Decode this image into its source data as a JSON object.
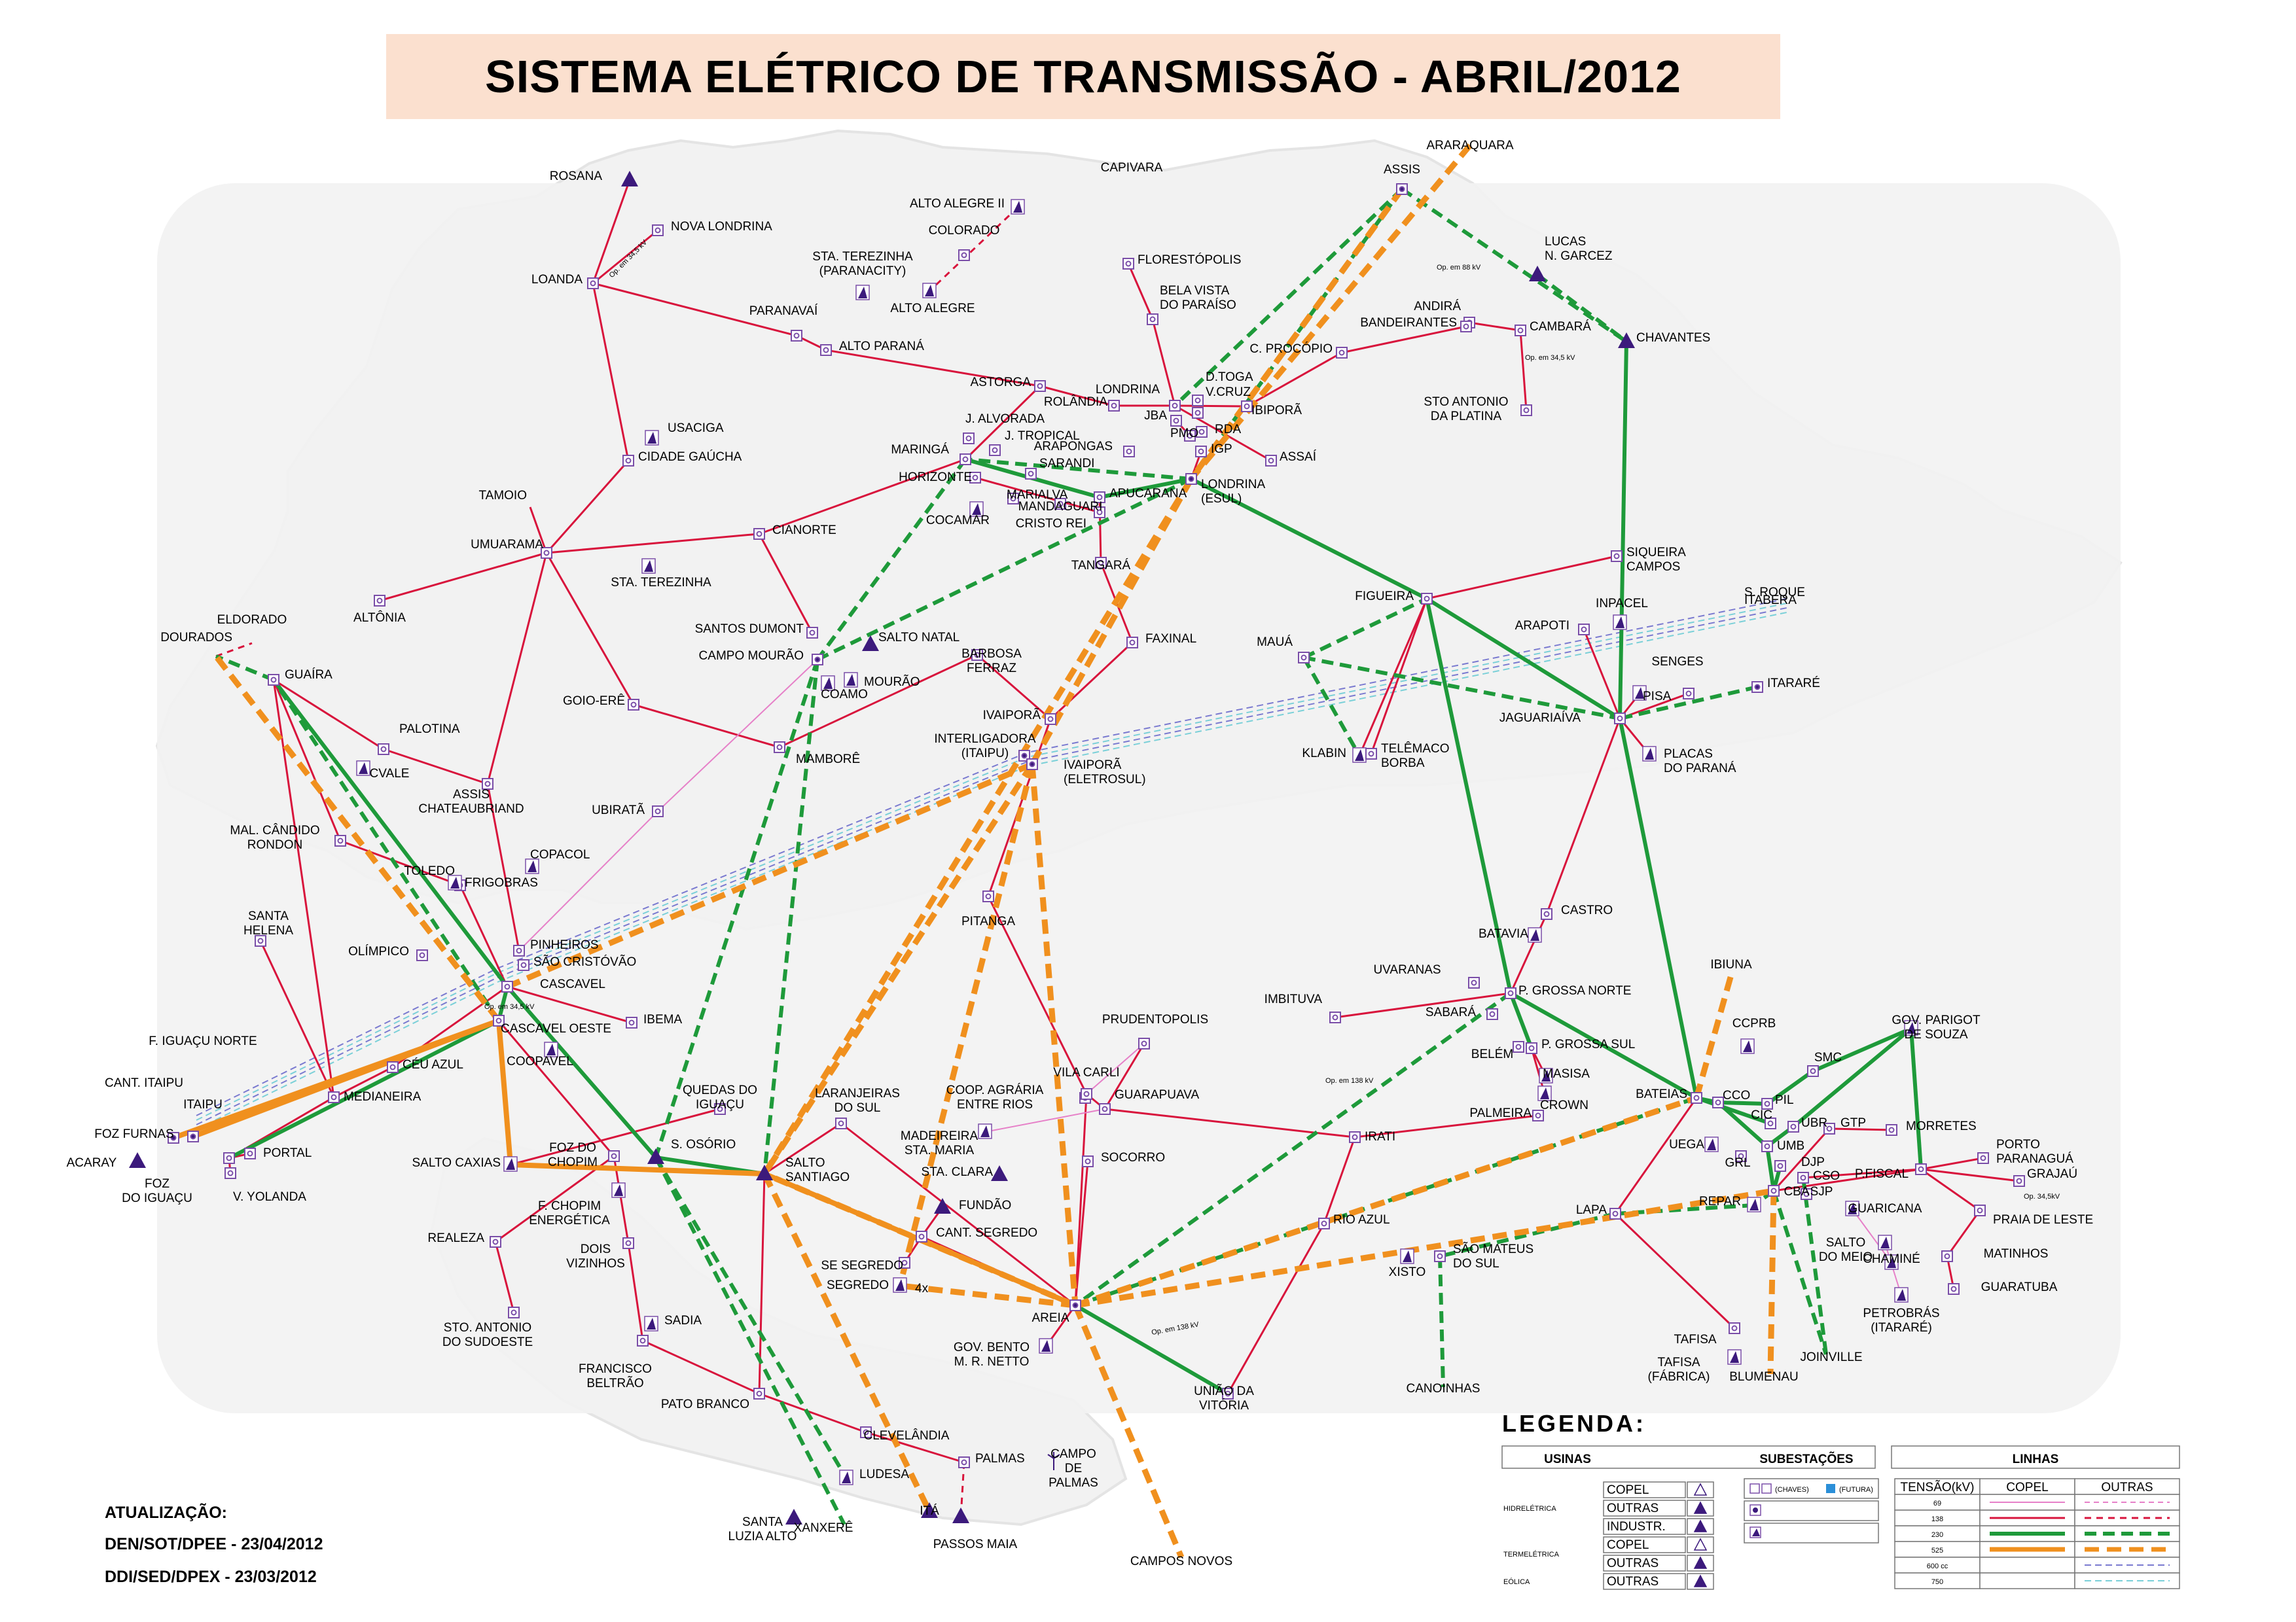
{
  "title": "SISTEMA ELÉTRICO DE TRANSMISSÃO - ABRIL/2012",
  "colors": {
    "line_69": "#e680c8",
    "line_138": "#d8143c",
    "line_230": "#1e9a3a",
    "line_525": "#f0901e",
    "line_600": "#7a7ad0",
    "line_750": "#7ad0d8",
    "plant": "#3c1a7c",
    "substation": "#7a4ea8",
    "title_bg": "#fbe0cf",
    "territory": "#f2f2f2"
  },
  "stations": [
    {
      "name": "ROSANA",
      "sym": "tri"
    },
    {
      "name": "NOVA LONDRINA",
      "sym": "sq"
    },
    {
      "name": "LOANDA",
      "sym": "sq"
    },
    {
      "name": "PARANAVAÍ",
      "sym": "sq"
    },
    {
      "name": "ALTO PARANÁ",
      "sym": "sq"
    },
    {
      "name": "ALTO ALEGRE II",
      "sym": "trio"
    },
    {
      "name": "COLORADO",
      "sym": "sq"
    },
    {
      "name": "STA. TEREZINHA (PARANACITY)",
      "sym": "trio"
    },
    {
      "name": "ALTO ALEGRE",
      "sym": "trio"
    },
    {
      "name": "CAPIVARA",
      "sym": "none"
    },
    {
      "name": "FLORESTÓPOLIS",
      "sym": "sq"
    },
    {
      "name": "BELA VISTA DO PARAÍSO",
      "sym": "sq"
    },
    {
      "name": "ARARAQUARA",
      "sym": "none"
    },
    {
      "name": "ASSIS",
      "sym": "sqb"
    },
    {
      "name": "LUCAS N. GARCEZ",
      "sym": "tri"
    },
    {
      "name": "ANDIRÁ",
      "sym": "sq"
    },
    {
      "name": "CAMBARÁ",
      "sym": "sq"
    },
    {
      "name": "BANDEIRANTES",
      "sym": "sq"
    },
    {
      "name": "C. PROCÓPIO",
      "sym": "sq"
    },
    {
      "name": "STO ANTONIO DA PLATINA",
      "sym": "sq"
    },
    {
      "name": "CHAVANTES",
      "sym": "tri"
    },
    {
      "name": "ASTORGA",
      "sym": "sq"
    },
    {
      "name": "ROLÂNDIA",
      "sym": "sq"
    },
    {
      "name": "LONDRINA",
      "sym": "sq"
    },
    {
      "name": "D.TOGA",
      "sym": "sq"
    },
    {
      "name": "V.CRUZ",
      "sym": "sq"
    },
    {
      "name": "IBIPORÃ",
      "sym": "sq"
    },
    {
      "name": "JBA",
      "sym": "sq"
    },
    {
      "name": "PMO",
      "sym": "sq"
    },
    {
      "name": "RDA",
      "sym": "sq"
    },
    {
      "name": "IGP",
      "sym": "sq"
    },
    {
      "name": "ASSAÍ",
      "sym": "sq"
    },
    {
      "name": "LONDRINA (ESUL)",
      "sym": "sqb"
    },
    {
      "name": "J. ALVORADA",
      "sym": "sq"
    },
    {
      "name": "J. TROPICAL",
      "sym": "sq"
    },
    {
      "name": "ARAPONGAS",
      "sym": "sq"
    },
    {
      "name": "SARANDI",
      "sym": "sq"
    },
    {
      "name": "MARINGÁ",
      "sym": "sq"
    },
    {
      "name": "HORIZONTE",
      "sym": "sq"
    },
    {
      "name": "MARIALVA",
      "sym": "sq"
    },
    {
      "name": "MANDAGUARI",
      "sym": "sq"
    },
    {
      "name": "APUCARANA",
      "sym": "sq"
    },
    {
      "name": "COCAMAR",
      "sym": "trio"
    },
    {
      "name": "CRISTO REI",
      "sym": "sq"
    },
    {
      "name": "TANGARÁ",
      "sym": "sq"
    },
    {
      "name": "USACIGA",
      "sym": "trio"
    },
    {
      "name": "CIDADE GAÚCHA",
      "sym": "sq"
    },
    {
      "name": "TAMOIO",
      "sym": "none"
    },
    {
      "name": "UMUARAMA",
      "sym": "sq"
    },
    {
      "name": "CIANORTE",
      "sym": "sq"
    },
    {
      "name": "STA. TEREZINHA",
      "sym": "trio"
    },
    {
      "name": "ALTÔNIA",
      "sym": "sq"
    },
    {
      "name": "SANTOS DUMONT",
      "sym": "sq"
    },
    {
      "name": "CAMPO MOURÃO",
      "sym": "sqb"
    },
    {
      "name": "SALTO NATAL",
      "sym": "tri"
    },
    {
      "name": "MOURÃO",
      "sym": "trio"
    },
    {
      "name": "COAMO",
      "sym": "trio"
    },
    {
      "name": "BARBOSA FERRAZ",
      "sym": "sq"
    },
    {
      "name": "FAXINAL",
      "sym": "sq"
    },
    {
      "name": "ELDORADO",
      "sym": "none"
    },
    {
      "name": "DOURADOS",
      "sym": "none"
    },
    {
      "name": "GUAÍRA",
      "sym": "sq"
    },
    {
      "name": "PALOTINA",
      "sym": "sq"
    },
    {
      "name": "CVALE",
      "sym": "trio"
    },
    {
      "name": "ASSIS CHATEAUBRIAND",
      "sym": "sq"
    },
    {
      "name": "GOIO-ERÊ",
      "sym": "sq"
    },
    {
      "name": "MAMBORÊ",
      "sym": "sq"
    },
    {
      "name": "IVAIPORÃ",
      "sym": "sq"
    },
    {
      "name": "INTERLIGADORA (ITAIPU)",
      "sym": "sqb"
    },
    {
      "name": "IVAIPORÃ (ELETROSUL)",
      "sym": "sqb"
    },
    {
      "name": "UBIRATÃ",
      "sym": "sq"
    },
    {
      "name": "PITANGA",
      "sym": "sq"
    },
    {
      "name": "MAL. CÂNDIDO RONDON",
      "sym": "sq"
    },
    {
      "name": "COPACOL",
      "sym": "trio"
    },
    {
      "name": "TOLEDO",
      "sym": "sq"
    },
    {
      "name": "FRIGOBRAS",
      "sym": "trio"
    },
    {
      "name": "SANTA HELENA",
      "sym": "sq"
    },
    {
      "name": "OLÍMPICO",
      "sym": "sq"
    },
    {
      "name": "PINHEIROS",
      "sym": "sq"
    },
    {
      "name": "SÃO CRISTÓVÃO",
      "sym": "sq"
    },
    {
      "name": "CASCAVEL",
      "sym": "sq"
    },
    {
      "name": "CASCAVEL OESTE",
      "sym": "sq"
    },
    {
      "name": "IBEMA",
      "sym": "sq"
    },
    {
      "name": "COOPAVEL",
      "sym": "trio"
    },
    {
      "name": "CÉU AZUL",
      "sym": "sq"
    },
    {
      "name": "F. IGUAÇU NORTE",
      "sym": "none"
    },
    {
      "name": "CANT. ITAIPU",
      "sym": "none"
    },
    {
      "name": "ITAIPU",
      "sym": "sqb"
    },
    {
      "name": "MEDIANEIRA",
      "sym": "sq"
    },
    {
      "name": "FOZ FURNAS",
      "sym": "sqb"
    },
    {
      "name": "ACARAY",
      "sym": "tri"
    },
    {
      "name": "FOZ DO IGUAÇU",
      "sym": "sq"
    },
    {
      "name": "V. YOLANDA",
      "sym": "sq"
    },
    {
      "name": "PORTAL",
      "sym": "sq"
    },
    {
      "name": "SALTO CAXIAS",
      "sym": "trio"
    },
    {
      "name": "FOZ DO CHOPIM",
      "sym": "sq"
    },
    {
      "name": "S. OSÓRIO",
      "sym": "tri"
    },
    {
      "name": "QUEDAS DO IGUAÇU",
      "sym": "sq"
    },
    {
      "name": "SALTO SANTIAGO",
      "sym": "tri"
    },
    {
      "name": "F. CHOPIM ENERGÉTICA",
      "sym": "trio"
    },
    {
      "name": "LARANJEIRAS DO SUL",
      "sym": "sq"
    },
    {
      "name": "REALEZA",
      "sym": "sq"
    },
    {
      "name": "DOIS VIZINHOS",
      "sym": "sq"
    },
    {
      "name": "SADIA",
      "sym": "trio"
    },
    {
      "name": "STO. ANTONIO DO SUDOESTE",
      "sym": "sq"
    },
    {
      "name": "FRANCISCO BELTRÃO",
      "sym": "sq"
    },
    {
      "name": "PATO BRANCO",
      "sym": "sq"
    },
    {
      "name": "CLEVELÂNDIA",
      "sym": "sq"
    },
    {
      "name": "LUDESA",
      "sym": "trio"
    },
    {
      "name": "PALMAS",
      "sym": "sq"
    },
    {
      "name": "CAMPO DE PALMAS",
      "sym": "wind"
    },
    {
      "name": "SANTA LUZIA ALTO",
      "sym": "tri"
    },
    {
      "name": "XANXERÊ",
      "sym": "none"
    },
    {
      "name": "ITÁ",
      "sym": "tri"
    },
    {
      "name": "PASSOS MAIA",
      "sym": "tri"
    },
    {
      "name": "CAMPOS NOVOS",
      "sym": "none"
    },
    {
      "name": "CANT. SEGREDO",
      "sym": "sq"
    },
    {
      "name": "SE SEGREDO",
      "sym": "sq"
    },
    {
      "name": "SEGREDO",
      "sym": "trio"
    },
    {
      "name": "GOV. BENTO M. R. NETTO",
      "sym": "trio"
    },
    {
      "name": "AREIA",
      "sym": "sqb"
    },
    {
      "name": "FUNDÃO",
      "sym": "tri"
    },
    {
      "name": "STA. CLARA",
      "sym": "tri"
    },
    {
      "name": "COOP. AGRÁRIA ENTRE RIOS",
      "sym": "sq"
    },
    {
      "name": "MADEIREIRA STA. MARIA",
      "sym": "trio"
    },
    {
      "name": "VILA CARLI",
      "sym": "sq"
    },
    {
      "name": "GUARAPUAVA",
      "sym": "sq"
    },
    {
      "name": "PRUDENTOPOLIS",
      "sym": "sq"
    },
    {
      "name": "SOCORRO",
      "sym": "sq"
    },
    {
      "name": "IRATI",
      "sym": "sq"
    },
    {
      "name": "RIO AZUL",
      "sym": "sq"
    },
    {
      "name": "UNIÃO DA VITÓRIA",
      "sym": "sq"
    },
    {
      "name": "XISTO",
      "sym": "trio"
    },
    {
      "name": "SÃO MATEUS DO SUL",
      "sym": "sq"
    },
    {
      "name": "CANOINHAS",
      "sym": "none"
    },
    {
      "name": "FIGUEIRA",
      "sym": "sq"
    },
    {
      "name": "MAUÁ",
      "sym": "sq"
    },
    {
      "name": "KLABIN",
      "sym": "trio"
    },
    {
      "name": "TELÊMACO BORBA",
      "sym": "sq"
    },
    {
      "name": "SIQUEIRA CAMPOS",
      "sym": "sq"
    },
    {
      "name": "INPACEL",
      "sym": "trio"
    },
    {
      "name": "ARAPOTI",
      "sym": "sq"
    },
    {
      "name": "SENGES",
      "sym": "sq"
    },
    {
      "name": "PISA",
      "sym": "trio"
    },
    {
      "name": "JAGUARIAÍVA",
      "sym": "sq"
    },
    {
      "name": "PLACAS DO PARANÁ",
      "sym": "trio"
    },
    {
      "name": "ITARARÉ",
      "sym": "sqb"
    },
    {
      "name": "S. ROQUE",
      "sym": "none"
    },
    {
      "name": "ITABERA",
      "sym": "none"
    },
    {
      "name": "CASTRO",
      "sym": "sq"
    },
    {
      "name": "BATAVIA",
      "sym": "trio"
    },
    {
      "name": "UVARANAS",
      "sym": "sq"
    },
    {
      "name": "IMBITUVA",
      "sym": "sq"
    },
    {
      "name": "P. GROSSA NORTE",
      "sym": "sq"
    },
    {
      "name": "SABARÁ",
      "sym": "sq"
    },
    {
      "name": "BELÉM",
      "sym": "sq"
    },
    {
      "name": "P. GROSSA SUL",
      "sym": "sq"
    },
    {
      "name": "MASISA",
      "sym": "trio"
    },
    {
      "name": "CROWN",
      "sym": "trio"
    },
    {
      "name": "PALMEIRA",
      "sym": "sq"
    },
    {
      "name": "IBIUNA",
      "sym": "none"
    },
    {
      "name": "CCPRB",
      "sym": "trio"
    },
    {
      "name": "GOV. PARIGOT DE SOUZA",
      "sym": "trio"
    },
    {
      "name": "SMC",
      "sym": "sq"
    },
    {
      "name": "BATEIAS",
      "sym": "sq"
    },
    {
      "name": "CCO",
      "sym": "sq"
    },
    {
      "name": "PIL",
      "sym": "sq"
    },
    {
      "name": "CIC",
      "sym": "sq"
    },
    {
      "name": "UBR",
      "sym": "sq"
    },
    {
      "name": "GTP",
      "sym": "sq"
    },
    {
      "name": "UEGA",
      "sym": "trio"
    },
    {
      "name": "GRL",
      "sym": "sq"
    },
    {
      "name": "UMB",
      "sym": "sq"
    },
    {
      "name": "DJP",
      "sym": "sq"
    },
    {
      "name": "CSO",
      "sym": "sq"
    },
    {
      "name": "SJP",
      "sym": "sq"
    },
    {
      "name": "CBA",
      "sym": "sq"
    },
    {
      "name": "REPAR",
      "sym": "trio"
    },
    {
      "name": "MORRETES",
      "sym": "sq"
    },
    {
      "name": "P.FISCAL",
      "sym": "sq"
    },
    {
      "name": "PORTO PARANAGUÁ",
      "sym": "sq"
    },
    {
      "name": "GRAJAÚ",
      "sym": "sq"
    },
    {
      "name": "PRAIA DE LESTE",
      "sym": "sq"
    },
    {
      "name": "GUARICANA",
      "sym": "trio"
    },
    {
      "name": "SALTO DO MEIO",
      "sym": "trio"
    },
    {
      "name": "CHAMINÉ",
      "sym": "trio"
    },
    {
      "name": "MATINHOS",
      "sym": "sq"
    },
    {
      "name": "GUARATUBA",
      "sym": "sq"
    },
    {
      "name": "PETROBRÁS (ITARARÉ)",
      "sym": "trio"
    },
    {
      "name": "LAPA",
      "sym": "sq"
    },
    {
      "name": "TAFISA",
      "sym": "sq"
    },
    {
      "name": "TAFISA (FÁBRICA)",
      "sym": "trio"
    },
    {
      "name": "BLUMENAU",
      "sym": "none"
    },
    {
      "name": "JOINVILLE",
      "sym": "none"
    }
  ],
  "annotations": [
    "Op. em 34,5 kV",
    "Op. em 88 kV",
    "Op. em 34,5 kV",
    "Op. em 138 kV",
    "Op. em 34,5 kV",
    "Op. em 138 kV",
    "Op. 34,5kV",
    "4x"
  ],
  "legend": {
    "title": "LEGENDA:",
    "usinas_header": "USINAS",
    "subestacoes_header": "SUBESTAÇÕES",
    "linhas_header": "LINHAS",
    "plant_types": [
      {
        "group": "HIDRELÉTRICA",
        "rows": [
          "COPEL",
          "OUTRAS",
          "INDUSTR."
        ]
      },
      {
        "group": "TERMELÉTRICA",
        "rows": [
          "COPEL",
          "OUTRAS"
        ]
      },
      {
        "group": "EÓLICA",
        "rows": [
          "OUTRAS"
        ]
      }
    ],
    "substation_notes": {
      "chaves": "(CHAVES)",
      "futura": "(FUTURA)"
    },
    "lines_table": {
      "headers": [
        "TENSÃO(kV)",
        "COPEL",
        "OUTRAS"
      ],
      "rows": [
        "69",
        "138",
        "230",
        "525",
        "600 cc",
        "750"
      ]
    }
  },
  "update": {
    "heading": "ATUALIZAÇÃO:",
    "line1": "DEN/SOT/DPEE - 23/04/2012",
    "line2": "DDI/SED/DPEX -  23/03/2012"
  }
}
